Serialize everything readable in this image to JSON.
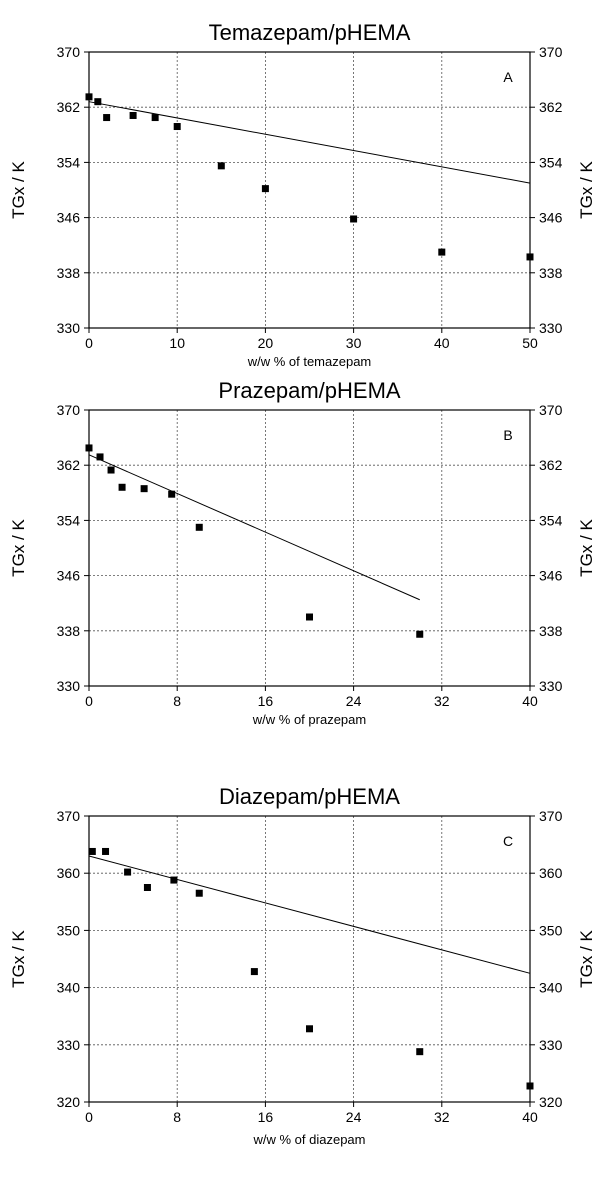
{
  "chart_data": [
    {
      "type": "scatter",
      "title": "Temazepam/pHEMA",
      "panel_label": "A",
      "xlabel": "w/w % of temazepam",
      "ylabel": "TGx / K",
      "ylabel_right": "TGx / K",
      "xlim": [
        0,
        50
      ],
      "ylim": [
        330,
        370
      ],
      "x_ticks": [
        0,
        10,
        20,
        30,
        40,
        50
      ],
      "y_ticks": [
        330,
        338,
        346,
        354,
        362,
        370
      ],
      "grid": true,
      "series": [
        {
          "x": [
            0,
            1,
            2,
            5,
            7.5,
            10,
            15,
            20,
            30,
            40,
            50
          ],
          "y": [
            363.5,
            362.8,
            360.5,
            360.8,
            360.5,
            359.2,
            353.5,
            350.2,
            345.8,
            341.0,
            340.3
          ]
        }
      ],
      "fit_line": {
        "x": [
          0,
          50
        ],
        "y": [
          362.8,
          351.0
        ]
      }
    },
    {
      "type": "scatter",
      "title": "Prazepam/pHEMA",
      "panel_label": "B",
      "xlabel": "w/w % of prazepam",
      "ylabel": "TGx / K",
      "ylabel_right": "TGx / K",
      "xlim": [
        0,
        40
      ],
      "ylim": [
        330,
        370
      ],
      "x_ticks": [
        0,
        8,
        16,
        24,
        32,
        40
      ],
      "y_ticks": [
        330,
        338,
        346,
        354,
        362,
        370
      ],
      "grid": true,
      "series": [
        {
          "x": [
            0,
            1,
            2,
            3,
            5,
            7.5,
            10,
            20,
            30
          ],
          "y": [
            364.5,
            363.2,
            361.3,
            358.8,
            358.6,
            357.8,
            353.0,
            340.0,
            337.5
          ]
        }
      ],
      "fit_line": {
        "x": [
          0,
          30
        ],
        "y": [
          363.5,
          342.5
        ]
      }
    },
    {
      "type": "scatter",
      "title": "Diazepam/pHEMA",
      "panel_label": "C",
      "xlabel": "w/w % of diazepam",
      "ylabel": "TGx / K",
      "ylabel_right": "TGx / K",
      "xlim": [
        0,
        40
      ],
      "ylim": [
        320,
        370
      ],
      "x_ticks": [
        0,
        8,
        16,
        24,
        32,
        40
      ],
      "y_ticks": [
        320,
        330,
        340,
        350,
        360,
        370
      ],
      "grid": true,
      "series": [
        {
          "x": [
            0.3,
            1.5,
            3.5,
            5.3,
            7.7,
            10,
            15,
            20,
            30,
            40
          ],
          "y": [
            363.8,
            363.8,
            360.2,
            357.5,
            358.8,
            356.5,
            342.8,
            332.8,
            328.8,
            322.8
          ]
        }
      ],
      "fit_line": {
        "x": [
          0,
          40
        ],
        "y": [
          363.0,
          342.5
        ]
      }
    }
  ]
}
